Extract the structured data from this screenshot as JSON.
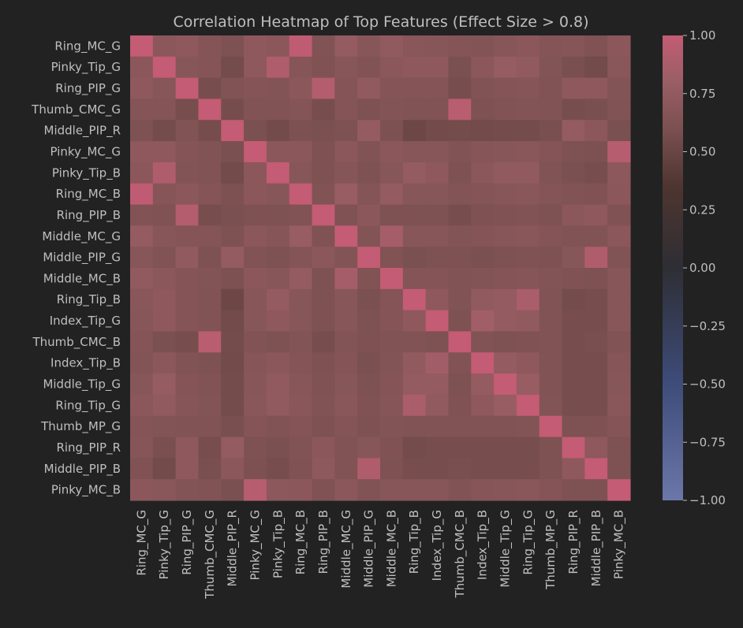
{
  "chart_data": {
    "type": "heatmap",
    "title": "Correlation Heatmap of Top Features (Effect Size > 0.8)",
    "xlabel": "",
    "ylabel": "",
    "labels": [
      "Ring_MC_G",
      "Pinky_Tip_G",
      "Ring_PIP_G",
      "Thumb_CMC_G",
      "Middle_PIP_R",
      "Pinky_MC_G",
      "Pinky_Tip_B",
      "Ring_MC_B",
      "Ring_PIP_B",
      "Middle_MC_G",
      "Middle_PIP_G",
      "Middle_MC_B",
      "Ring_Tip_B",
      "Index_Tip_G",
      "Thumb_CMC_B",
      "Index_Tip_B",
      "Middle_Tip_G",
      "Ring_Tip_G",
      "Thumb_MP_G",
      "Ring_PIP_R",
      "Middle_PIP_B",
      "Pinky_MC_B"
    ],
    "colorbar": {
      "vmin": -1.0,
      "vmax": 1.0,
      "ticks": [
        "1.00",
        "0.75",
        "0.50",
        "0.25",
        "0.00",
        "−0.25",
        "−0.50",
        "−0.75",
        "−1.00"
      ],
      "colors": [
        [
          -1.0,
          "#6b77a8"
        ],
        [
          -0.5,
          "#3e4c7a"
        ],
        [
          0.0,
          "#2e2e34"
        ],
        [
          0.35,
          "#4e3530"
        ],
        [
          0.6,
          "#7b5050"
        ],
        [
          0.8,
          "#9a5e65"
        ],
        [
          1.0,
          "#c35c74"
        ]
      ]
    },
    "matrix": [
      [
        1.0,
        0.7,
        0.72,
        0.66,
        0.62,
        0.72,
        0.7,
        0.98,
        0.64,
        0.76,
        0.68,
        0.74,
        0.69,
        0.68,
        0.66,
        0.65,
        0.68,
        0.7,
        0.66,
        0.67,
        0.63,
        0.7
      ],
      [
        0.7,
        1.0,
        0.68,
        0.66,
        0.56,
        0.72,
        0.9,
        0.67,
        0.63,
        0.68,
        0.64,
        0.7,
        0.72,
        0.72,
        0.6,
        0.7,
        0.77,
        0.74,
        0.65,
        0.59,
        0.55,
        0.69
      ],
      [
        0.72,
        0.68,
        1.0,
        0.58,
        0.64,
        0.66,
        0.65,
        0.7,
        0.92,
        0.66,
        0.74,
        0.66,
        0.66,
        0.66,
        0.58,
        0.64,
        0.66,
        0.67,
        0.64,
        0.72,
        0.72,
        0.65
      ],
      [
        0.66,
        0.66,
        0.58,
        1.0,
        0.57,
        0.64,
        0.64,
        0.66,
        0.58,
        0.66,
        0.62,
        0.65,
        0.64,
        0.64,
        0.95,
        0.62,
        0.64,
        0.65,
        0.64,
        0.58,
        0.59,
        0.64
      ],
      [
        0.62,
        0.56,
        0.64,
        0.57,
        1.0,
        0.6,
        0.55,
        0.61,
        0.6,
        0.62,
        0.76,
        0.61,
        0.52,
        0.55,
        0.56,
        0.55,
        0.56,
        0.56,
        0.59,
        0.76,
        0.7,
        0.6
      ],
      [
        0.72,
        0.72,
        0.66,
        0.64,
        0.6,
        1.0,
        0.7,
        0.7,
        0.62,
        0.7,
        0.64,
        0.7,
        0.68,
        0.68,
        0.64,
        0.67,
        0.68,
        0.69,
        0.66,
        0.62,
        0.61,
        0.94
      ],
      [
        0.7,
        0.9,
        0.65,
        0.64,
        0.55,
        0.7,
        1.0,
        0.68,
        0.62,
        0.67,
        0.62,
        0.68,
        0.76,
        0.72,
        0.62,
        0.7,
        0.74,
        0.74,
        0.64,
        0.6,
        0.58,
        0.71
      ],
      [
        0.98,
        0.67,
        0.7,
        0.66,
        0.61,
        0.7,
        0.68,
        1.0,
        0.64,
        0.78,
        0.66,
        0.76,
        0.68,
        0.68,
        0.65,
        0.66,
        0.68,
        0.69,
        0.66,
        0.64,
        0.63,
        0.7
      ],
      [
        0.64,
        0.63,
        0.92,
        0.58,
        0.6,
        0.62,
        0.62,
        0.64,
        1.0,
        0.63,
        0.7,
        0.62,
        0.62,
        0.62,
        0.58,
        0.62,
        0.63,
        0.64,
        0.62,
        0.7,
        0.72,
        0.63
      ],
      [
        0.76,
        0.68,
        0.66,
        0.66,
        0.62,
        0.7,
        0.67,
        0.78,
        0.63,
        1.0,
        0.65,
        0.86,
        0.68,
        0.68,
        0.65,
        0.66,
        0.68,
        0.69,
        0.66,
        0.64,
        0.64,
        0.7
      ],
      [
        0.68,
        0.64,
        0.74,
        0.62,
        0.76,
        0.64,
        0.62,
        0.66,
        0.7,
        0.65,
        1.0,
        0.64,
        0.6,
        0.62,
        0.62,
        0.6,
        0.62,
        0.63,
        0.62,
        0.68,
        0.9,
        0.64
      ],
      [
        0.74,
        0.7,
        0.66,
        0.65,
        0.61,
        0.7,
        0.68,
        0.76,
        0.62,
        0.86,
        0.64,
        1.0,
        0.66,
        0.66,
        0.64,
        0.65,
        0.66,
        0.67,
        0.65,
        0.63,
        0.62,
        0.68
      ],
      [
        0.69,
        0.72,
        0.66,
        0.64,
        0.52,
        0.68,
        0.76,
        0.68,
        0.62,
        0.68,
        0.6,
        0.66,
        1.0,
        0.72,
        0.64,
        0.74,
        0.76,
        0.88,
        0.64,
        0.56,
        0.58,
        0.68
      ],
      [
        0.68,
        0.72,
        0.66,
        0.64,
        0.55,
        0.68,
        0.72,
        0.68,
        0.62,
        0.68,
        0.62,
        0.66,
        0.72,
        1.0,
        0.62,
        0.84,
        0.76,
        0.74,
        0.64,
        0.58,
        0.58,
        0.68
      ],
      [
        0.66,
        0.6,
        0.58,
        0.95,
        0.56,
        0.64,
        0.62,
        0.65,
        0.58,
        0.65,
        0.62,
        0.64,
        0.64,
        0.62,
        1.0,
        0.64,
        0.62,
        0.63,
        0.64,
        0.58,
        0.59,
        0.64
      ],
      [
        0.65,
        0.7,
        0.64,
        0.62,
        0.55,
        0.67,
        0.7,
        0.66,
        0.62,
        0.66,
        0.6,
        0.65,
        0.74,
        0.84,
        0.64,
        1.0,
        0.76,
        0.72,
        0.64,
        0.58,
        0.58,
        0.67
      ],
      [
        0.68,
        0.77,
        0.66,
        0.64,
        0.56,
        0.68,
        0.74,
        0.68,
        0.63,
        0.68,
        0.62,
        0.66,
        0.76,
        0.76,
        0.62,
        0.76,
        1.0,
        0.78,
        0.64,
        0.58,
        0.58,
        0.68
      ],
      [
        0.7,
        0.74,
        0.67,
        0.65,
        0.56,
        0.69,
        0.74,
        0.69,
        0.64,
        0.69,
        0.63,
        0.67,
        0.88,
        0.74,
        0.63,
        0.72,
        0.78,
        1.0,
        0.65,
        0.58,
        0.58,
        0.69
      ],
      [
        0.66,
        0.65,
        0.64,
        0.64,
        0.59,
        0.66,
        0.64,
        0.66,
        0.62,
        0.66,
        0.62,
        0.65,
        0.64,
        0.64,
        0.64,
        0.64,
        0.64,
        0.65,
        1.0,
        0.62,
        0.62,
        0.66
      ],
      [
        0.67,
        0.59,
        0.72,
        0.58,
        0.76,
        0.62,
        0.6,
        0.64,
        0.7,
        0.64,
        0.68,
        0.63,
        0.56,
        0.58,
        0.58,
        0.58,
        0.58,
        0.58,
        0.62,
        1.0,
        0.72,
        0.62
      ],
      [
        0.63,
        0.55,
        0.72,
        0.59,
        0.7,
        0.61,
        0.58,
        0.63,
        0.72,
        0.64,
        0.9,
        0.62,
        0.58,
        0.58,
        0.59,
        0.58,
        0.58,
        0.58,
        0.62,
        0.72,
        1.0,
        0.62
      ],
      [
        0.7,
        0.69,
        0.65,
        0.64,
        0.6,
        0.94,
        0.71,
        0.7,
        0.63,
        0.7,
        0.64,
        0.68,
        0.68,
        0.68,
        0.64,
        0.67,
        0.68,
        0.69,
        0.66,
        0.62,
        0.62,
        1.0
      ]
    ]
  }
}
